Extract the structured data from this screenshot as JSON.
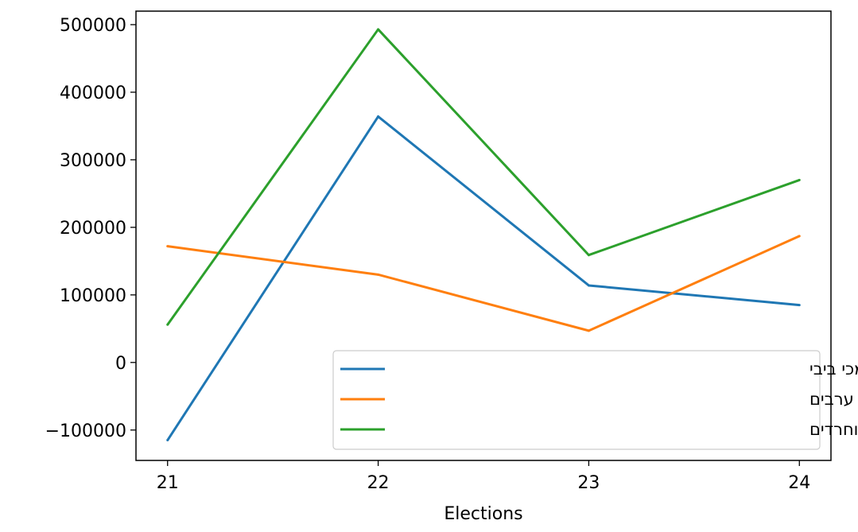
{
  "chart_data": {
    "type": "line",
    "title": "",
    "xlabel": "Elections",
    "ylabel": "",
    "x": [
      21,
      22,
      23,
      24
    ],
    "xticks": [
      "21",
      "22",
      "23",
      "24"
    ],
    "yticks": [
      -100000,
      0,
      100000,
      200000,
      300000,
      400000,
      500000
    ],
    "ytick_labels": [
      "−100000",
      "0",
      "100000",
      "200000",
      "300000",
      "400000",
      "500000"
    ],
    "xlim": [
      20.85,
      24.15
    ],
    "ylim": [
      -145000,
      520000
    ],
    "grid": false,
    "legend_position": "lower-right",
    "series": [
      {
        "name": "מתנגדי ביבי כולל ערבים פחות תומכי ביבי",
        "color": "#1f77b4",
        "values": [
          -115000,
          364000,
          114000,
          85000
        ]
      },
      {
        "name": "חרדים פחות ערבים",
        "color": "#ff7f0e",
        "values": [
          172000,
          130000,
          47000,
          187000
        ]
      },
      {
        "name": "מתנגדי ביבי פחות תומכי ביבי בלי ערבים וחרדים",
        "color": "#2ca02c",
        "values": [
          56000,
          493000,
          159000,
          270000
        ]
      }
    ]
  }
}
